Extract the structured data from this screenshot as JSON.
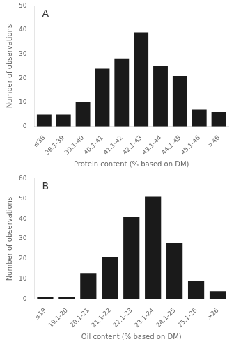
{
  "chart_data": [
    {
      "type": "bar",
      "annotations": [
        "A"
      ],
      "xlabel": "Protein content (% based on DM)",
      "ylabel": "Number of observations",
      "categories": [
        "≤38",
        "38.1-39",
        "39.1-40",
        "40.1-41",
        "41.1-42",
        "42.1-43",
        "43.1-44",
        "44.1-45",
        "45.1-46",
        ">46"
      ],
      "values": [
        5,
        5,
        10,
        24,
        28,
        39,
        25,
        21,
        7,
        6
      ],
      "color": "#1a1a1a",
      "ylim": [
        0,
        50
      ],
      "yticks": [
        0,
        10,
        20,
        30,
        40,
        50
      ],
      "grid": false
    },
    {
      "type": "bar",
      "annotations": [
        "B"
      ],
      "xlabel": "Oil content (% based on DM)",
      "ylabel": "Number of observations",
      "categories": [
        "≤19",
        "19.1-20",
        "20.1-21",
        "21.1-22",
        "22.1-23",
        "23.1-24",
        "24.1-25",
        "25.1-26",
        ">26"
      ],
      "values": [
        1,
        1,
        13,
        21,
        41,
        51,
        28,
        9,
        4
      ],
      "color": "#1a1a1a",
      "ylim": [
        0,
        60
      ],
      "yticks": [
        0,
        10,
        20,
        30,
        40,
        50,
        60
      ],
      "grid": false
    }
  ]
}
